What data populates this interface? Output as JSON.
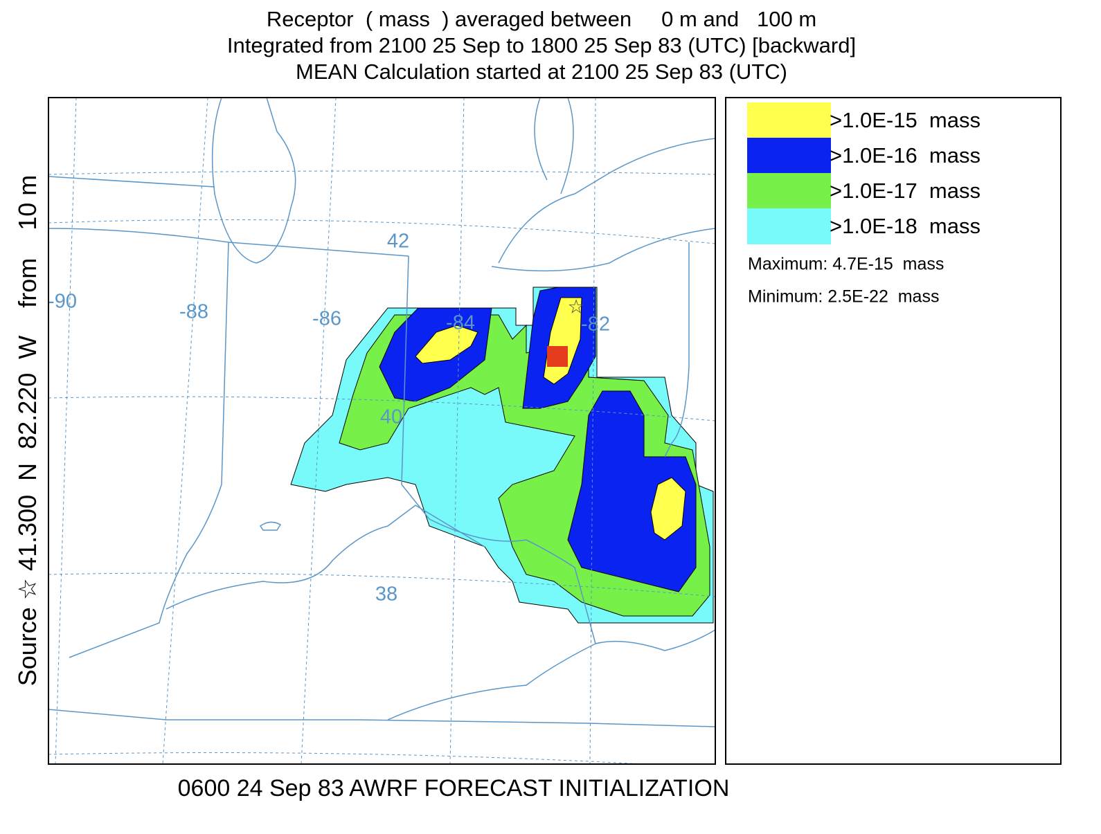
{
  "title": {
    "lines": [
      "Receptor  ( mass  ) averaged between     0 m and   100 m",
      "Integrated from 2100 25 Sep to 1800 25 Sep 83 (UTC) [backward]",
      "MEAN Calculation started at 2100 25 Sep 83 (UTC)"
    ]
  },
  "side_label": "Source ☆ 41.300  N  82.220  W    from    10 m",
  "footer": "0600 24 Sep 83 AWRF FORECAST INITIALIZATION",
  "legend": {
    "entries": [
      {
        "label": ">1.0E-15  mass",
        "color": "#ffff4d"
      },
      {
        "label": ">1.0E-16  mass",
        "color": "#0a23f0"
      },
      {
        "label": ">1.0E-17  mass",
        "color": "#78f04a"
      },
      {
        "label": ">1.0E-18  mass",
        "color": "#78fafa"
      }
    ],
    "maximum": "Maximum: 4.7E-15  mass",
    "minimum": "Minimum: 2.5E-22  mass"
  },
  "map": {
    "grid_labels": [
      "42",
      "-90",
      "-88",
      "-86",
      "-84",
      "-82",
      "40",
      "38"
    ]
  }
}
